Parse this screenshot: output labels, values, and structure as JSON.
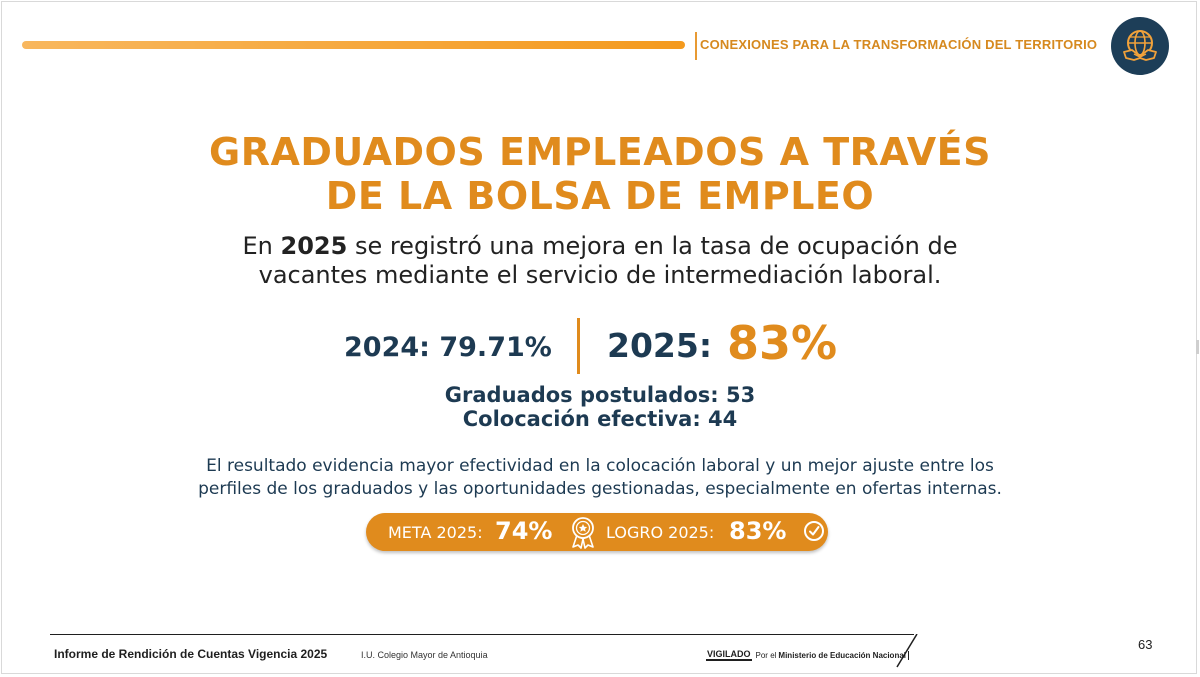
{
  "header": {
    "section_title": "CONEXIONES PARA LA TRANSFORMACIÓN DEL TERRITORIO",
    "logo_icon": "globe-handshake-icon"
  },
  "slide": {
    "title_line1": "GRADUADOS EMPLEADOS A TRAVÉS",
    "title_line2": "DE LA BOLSA DE EMPLEO",
    "intro_prefix": "En ",
    "intro_year": "2025",
    "intro_line1_rest": " se registró una mejora en la tasa de ocupación de",
    "intro_line2": "vacantes mediante el servicio de intermediación laboral.",
    "stat_2024_label": "2024:",
    "stat_2024_value": "79.71%",
    "stat_2025_label": "2025:",
    "stat_2025_value": "83%",
    "postulados": "Graduados postulados: 53",
    "colocacion": "Colocación efectiva: 44",
    "summary_line1": "El resultado evidencia mayor efectividad en la colocación laboral y un mejor ajuste entre los",
    "summary_line2": "perfiles de los graduados y las oportunidades gestionadas, especialmente en ofertas internas.",
    "meta_label": "META 2025:",
    "meta_value": "74%",
    "logro_label": "LOGRO 2025:",
    "logro_value": "83%",
    "medal_icon": "award-ribbon-icon",
    "check_icon": "check-circle-icon"
  },
  "footer": {
    "report": "Informe de Rendición de Cuentas Vigencia 2025",
    "institution": "I.U. Colegio Mayor de Antioquia",
    "vigilado": "VIGILADO",
    "por_el": "Por el",
    "ministry": "Ministerio de Educación Nacional",
    "page_number": "63"
  },
  "colors": {
    "accent_orange": "#e08b1d",
    "navy": "#1d3a52",
    "badge_navy": "#1d3e58"
  }
}
